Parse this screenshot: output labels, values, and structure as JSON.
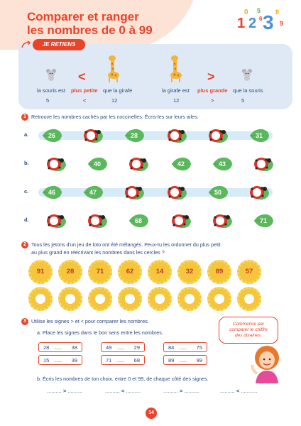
{
  "title": {
    "line1": "Comparer et ranger",
    "line2": "les nombres de 0 à 99"
  },
  "logo_digits": [
    "1",
    "0",
    "2",
    "5",
    "6",
    "3",
    "8",
    "9"
  ],
  "retiens": {
    "tag": "JE RETIENS",
    "left": {
      "a": "la souris est",
      "relation": "plus petite",
      "b": "que la girafe",
      "n1": "5",
      "sign": "<",
      "n2": "12"
    },
    "right": {
      "a": "la girafe est",
      "relation": "plus grande",
      "b": "que la souris",
      "n1": "12",
      "sign": ">",
      "n2": "5"
    },
    "big_sign_left": "<",
    "big_sign_right": ">"
  },
  "ex1": {
    "num": "1",
    "text": "Retrouve les nombres cachés par les coccinelles. Écris-les sur leurs ailes.",
    "rows": [
      {
        "label": "a.",
        "items": [
          "26",
          "",
          "28",
          "",
          "",
          "31"
        ]
      },
      {
        "label": "b.",
        "items": [
          "",
          "40",
          "",
          "42",
          "43",
          ""
        ]
      },
      {
        "label": "c.",
        "items": [
          "46",
          "47",
          "",
          "",
          "50",
          ""
        ]
      },
      {
        "label": "d.",
        "items": [
          "",
          "",
          "68",
          "",
          "",
          "71"
        ]
      }
    ]
  },
  "ex2": {
    "num": "2",
    "line1": "Tous les jetons d'un jeu de loto ont été mélangés. Peux-tu les ordonner du plus petit",
    "line2": "au plus grand en réécrivant les nombres dans les cercles ?",
    "tokens": [
      "91",
      "28",
      "71",
      "62",
      "14",
      "32",
      "89",
      "57"
    ]
  },
  "ex3": {
    "num": "3",
    "text": "Utilise les signes > et < pour comparer les nombres.",
    "part_a": "a.  Place les signes dans le bon sens entre les nombres.",
    "pairs": [
      [
        "28",
        "38"
      ],
      [
        "49",
        "29"
      ],
      [
        "84",
        "75"
      ],
      [
        "15",
        "39"
      ],
      [
        "71",
        "68"
      ],
      [
        "89",
        "99"
      ]
    ],
    "dots": "..........",
    "part_b": "b.  Écris les nombres de ton choix, entre 0 et 99, de chaque côté des signes.",
    "blank_lines": [
      {
        "left": "..........",
        "sign": ">",
        "right": ".........."
      },
      {
        "left": "..........",
        "sign": "<",
        "right": ".........."
      },
      {
        "left": "..........",
        "sign": ">",
        "right": ".........."
      },
      {
        "left": "..........",
        "sign": "<",
        "right": "..........."
      }
    ],
    "bubble": {
      "line1": "Commence par",
      "line2": "comparer le chiffre",
      "line3": "des dizaines."
    }
  },
  "page_number": "14",
  "colors": {
    "accent": "#e8442a",
    "text": "#2a4a7a",
    "leaf": "#5cb85c",
    "token": "#f5c53b",
    "panel": "#dfe9f6"
  }
}
